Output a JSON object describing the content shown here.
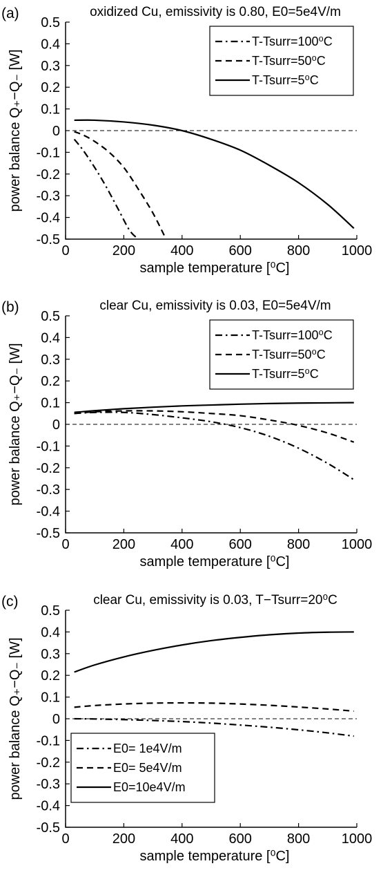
{
  "chart_data": [
    {
      "type": "line",
      "panel_label": "(a)",
      "title": "oxidized Cu, emissivity is 0.80, E0=5e4V/m",
      "xlabel": "sample temperature [⁰C]",
      "ylabel": "power balance Q₊−Q₋ [W]",
      "xlim": [
        0,
        1000
      ],
      "ylim": [
        -0.5,
        0.5
      ],
      "x_ticks": [
        "0",
        "200",
        "400",
        "600",
        "800",
        "1000"
      ],
      "y_ticks": [
        "0.5",
        "0.4",
        "0.3",
        "0.2",
        "0.1",
        "0",
        "-0.1",
        "-0.2",
        "-0.3",
        "-0.4",
        "-0.5"
      ],
      "zero_reference_line": true,
      "legend_position": "top-right",
      "series": [
        {
          "name": "T-Tsurr=100⁰C",
          "style": "dashdot",
          "x": [
            30,
            60,
            100,
            140,
            180,
            220,
            250
          ],
          "y": [
            -0.04,
            -0.09,
            -0.17,
            -0.26,
            -0.36,
            -0.46,
            -0.5
          ]
        },
        {
          "name": "T-Tsurr=50⁰C",
          "style": "dashed",
          "x": [
            30,
            60,
            100,
            150,
            200,
            250,
            300,
            345
          ],
          "y": [
            -0.005,
            -0.02,
            -0.05,
            -0.1,
            -0.17,
            -0.27,
            -0.38,
            -0.5
          ]
        },
        {
          "name": "T-Tsurr=5⁰C",
          "style": "solid",
          "x": [
            30,
            100,
            200,
            300,
            400,
            500,
            600,
            700,
            800,
            900,
            990
          ],
          "y": [
            0.048,
            0.048,
            0.04,
            0.025,
            0.0,
            -0.04,
            -0.09,
            -0.16,
            -0.24,
            -0.34,
            -0.45
          ]
        }
      ]
    },
    {
      "type": "line",
      "panel_label": "(b)",
      "title": "clear Cu, emissivity is 0.03, E0=5e4V/m",
      "xlabel": "sample temperature [⁰C]",
      "ylabel": "power balance Q₊−Q₋ [W]",
      "xlim": [
        0,
        1000
      ],
      "ylim": [
        -0.5,
        0.5
      ],
      "x_ticks": [
        "0",
        "200",
        "400",
        "600",
        "800",
        "1000"
      ],
      "y_ticks": [
        "0.5",
        "0.4",
        "0.3",
        "0.2",
        "0.1",
        "0",
        "-0.1",
        "-0.2",
        "-0.3",
        "-0.4",
        "-0.5"
      ],
      "zero_reference_line": true,
      "legend_position": "top-right",
      "series": [
        {
          "name": "T-Tsurr=100⁰C",
          "style": "dashdot",
          "x": [
            30,
            100,
            200,
            300,
            400,
            500,
            600,
            700,
            800,
            900,
            990
          ],
          "y": [
            0.05,
            0.055,
            0.055,
            0.045,
            0.03,
            0.012,
            -0.015,
            -0.055,
            -0.11,
            -0.18,
            -0.255
          ]
        },
        {
          "name": "T-Tsurr=50⁰C",
          "style": "dashed",
          "x": [
            30,
            100,
            200,
            300,
            400,
            500,
            600,
            700,
            800,
            900,
            990
          ],
          "y": [
            0.05,
            0.058,
            0.062,
            0.062,
            0.058,
            0.05,
            0.04,
            0.02,
            -0.005,
            -0.04,
            -0.082
          ]
        },
        {
          "name": "T-Tsurr=5⁰C",
          "style": "solid",
          "x": [
            30,
            100,
            200,
            300,
            400,
            500,
            600,
            700,
            800,
            900,
            990
          ],
          "y": [
            0.055,
            0.063,
            0.072,
            0.079,
            0.085,
            0.089,
            0.093,
            0.096,
            0.098,
            0.099,
            0.1
          ]
        }
      ]
    },
    {
      "type": "line",
      "panel_label": "(c)",
      "title": "clear Cu, emissivity is 0.03, T−Tsurr=20⁰C",
      "xlabel": "sample temperature [⁰C]",
      "ylabel": "power balance Q₊−Q₋ [W]",
      "xlim": [
        0,
        1000
      ],
      "ylim": [
        -0.5,
        0.5
      ],
      "x_ticks": [
        "0",
        "200",
        "400",
        "600",
        "800",
        "1000"
      ],
      "y_ticks": [
        "0.5",
        "0.4",
        "0.3",
        "0.2",
        "0.1",
        "0",
        "-0.1",
        "-0.2",
        "-0.3",
        "-0.4",
        "-0.5"
      ],
      "zero_reference_line": true,
      "legend_position": "bottom-left",
      "series": [
        {
          "name": "E0=  1e4V/m",
          "style": "dashdot",
          "x": [
            30,
            100,
            200,
            300,
            400,
            500,
            600,
            700,
            800,
            900,
            990
          ],
          "y": [
            0.0,
            -0.001,
            -0.004,
            -0.008,
            -0.013,
            -0.02,
            -0.029,
            -0.039,
            -0.051,
            -0.065,
            -0.08
          ]
        },
        {
          "name": "E0=  5e4V/m",
          "style": "dashed",
          "x": [
            30,
            100,
            200,
            300,
            400,
            500,
            600,
            700,
            800,
            900,
            990
          ],
          "y": [
            0.053,
            0.061,
            0.068,
            0.072,
            0.073,
            0.072,
            0.068,
            0.062,
            0.054,
            0.045,
            0.035
          ]
        },
        {
          "name": "E0=10e4V/m",
          "style": "solid",
          "x": [
            30,
            100,
            200,
            300,
            400,
            500,
            600,
            700,
            800,
            900,
            990
          ],
          "y": [
            0.215,
            0.248,
            0.285,
            0.315,
            0.34,
            0.36,
            0.375,
            0.387,
            0.395,
            0.399,
            0.4
          ]
        }
      ]
    }
  ]
}
